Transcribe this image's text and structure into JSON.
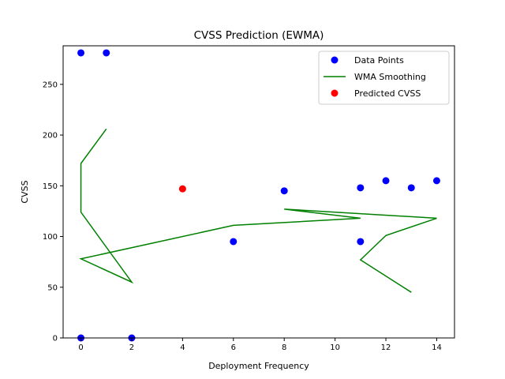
{
  "chart_data": {
    "type": "scatter",
    "title": "CVSS Prediction (EWMA)",
    "xlabel": "Deployment Frequency",
    "ylabel": "CVSS",
    "xlim": [
      -0.7,
      14.7
    ],
    "ylim": [
      0,
      288
    ],
    "x_ticks": [
      0,
      2,
      4,
      6,
      8,
      10,
      12,
      14
    ],
    "y_ticks": [
      0,
      50,
      100,
      150,
      200,
      250
    ],
    "grid": false,
    "legend_position": "top-right",
    "colors": {
      "data_points": "#0000ff",
      "smoothing": "#008000",
      "predicted": "#ff0000"
    },
    "legend": [
      "Data Points",
      "WMA Smoothing",
      "Predicted CVSS"
    ],
    "series": [
      {
        "name": "Data Points",
        "kind": "scatter",
        "points": [
          [
            0,
            281
          ],
          [
            1,
            281
          ],
          [
            0,
            0
          ],
          [
            2,
            0
          ],
          [
            6,
            95
          ],
          [
            8,
            145
          ],
          [
            11,
            148
          ],
          [
            11,
            95
          ],
          [
            12,
            155
          ],
          [
            13,
            148
          ],
          [
            14,
            155
          ]
        ]
      },
      {
        "name": "WMA Smoothing",
        "kind": "line",
        "points": [
          [
            1,
            206
          ],
          [
            0,
            172
          ],
          [
            0,
            124
          ],
          [
            2,
            55
          ],
          [
            0,
            78
          ],
          [
            6,
            111
          ],
          [
            11,
            118
          ],
          [
            8,
            127
          ],
          [
            14,
            118
          ],
          [
            12,
            101
          ],
          [
            11,
            77
          ],
          [
            13,
            45
          ]
        ]
      },
      {
        "name": "Predicted CVSS",
        "kind": "scatter",
        "points": [
          [
            4,
            147
          ]
        ]
      }
    ]
  }
}
